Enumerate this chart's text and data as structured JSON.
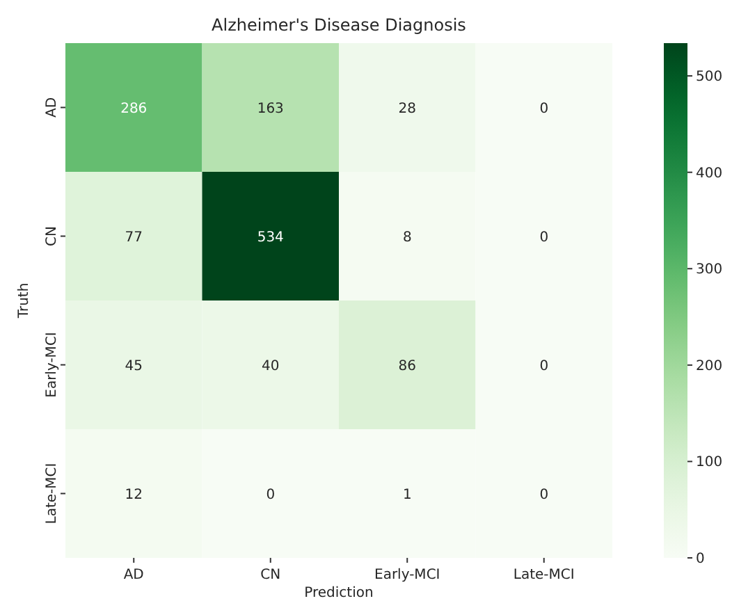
{
  "chart_data": {
    "type": "heatmap",
    "title": "Alzheimer's Disease Diagnosis",
    "xlabel": "Prediction",
    "ylabel": "Truth",
    "categories": [
      "AD",
      "CN",
      "Early-MCI",
      "Late-MCI"
    ],
    "y_categories": [
      "AD",
      "CN",
      "Early-MCI",
      "Late-MCI"
    ],
    "cells": [
      [
        286,
        163,
        28,
        0
      ],
      [
        77,
        534,
        8,
        0
      ],
      [
        45,
        40,
        86,
        0
      ],
      [
        12,
        0,
        1,
        0
      ]
    ],
    "data_labels": true,
    "clim": [
      0,
      534
    ],
    "cticks": [
      0,
      100,
      200,
      300,
      400,
      500
    ]
  }
}
